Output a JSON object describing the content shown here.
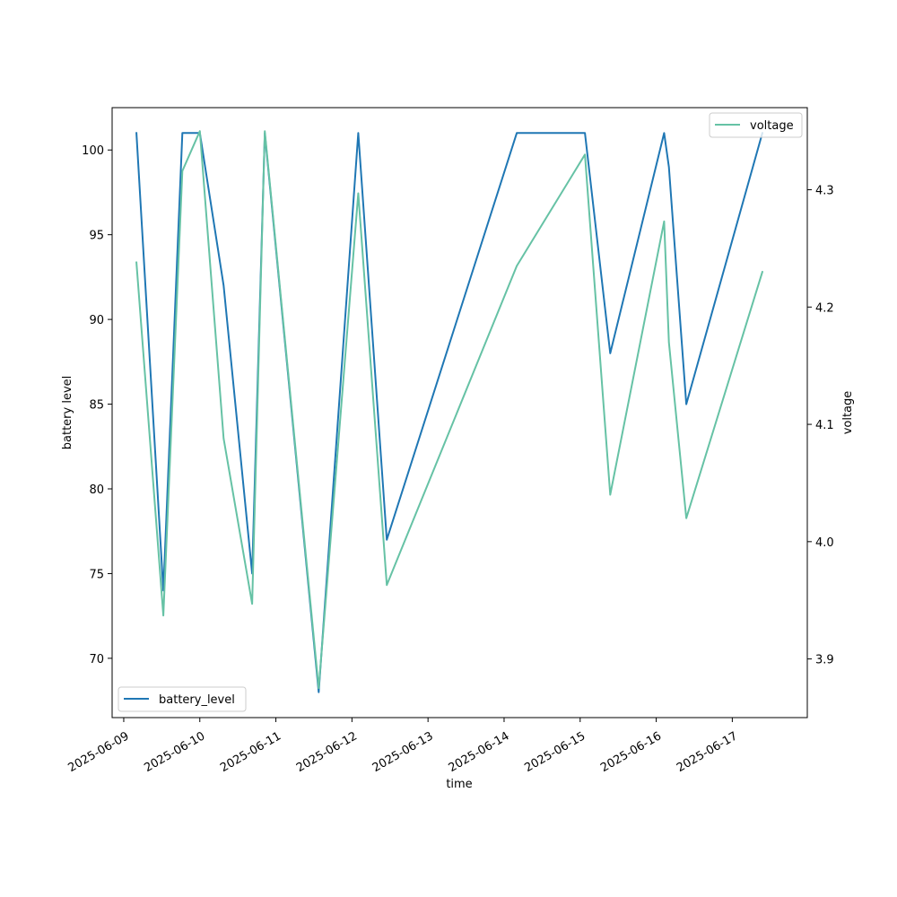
{
  "chart_data": {
    "type": "line",
    "xlabel": "time",
    "ylabel_left": "battery level",
    "ylabel_right": "voltage",
    "x_ticks": [
      "2025-06-09",
      "2025-06-10",
      "2025-06-11",
      "2025-06-12",
      "2025-06-13",
      "2025-06-14",
      "2025-06-15",
      "2025-06-16",
      "2025-06-17"
    ],
    "xlim": [
      "2025-06-08T20:20",
      "2025-06-17T23:40"
    ],
    "y_left_ticks": [
      70,
      75,
      80,
      85,
      90,
      95,
      100
    ],
    "y_left_lim": [
      66.5,
      102.5
    ],
    "y_right_ticks": [
      3.9,
      4.0,
      4.1,
      4.2,
      4.3
    ],
    "y_right_lim": [
      3.85,
      4.37
    ],
    "grid": false,
    "series": [
      {
        "name": "battery_level",
        "axis": "left",
        "color": "#1f77b4",
        "legend_position": "lower-left",
        "points": [
          [
            "2025-06-09T04:00",
            101
          ],
          [
            "2025-06-09T12:30",
            74
          ],
          [
            "2025-06-09T18:30",
            101
          ],
          [
            "2025-06-10T00:00",
            101
          ],
          [
            "2025-06-10T07:30",
            92
          ],
          [
            "2025-06-10T16:30",
            75
          ],
          [
            "2025-06-10T20:30",
            101
          ],
          [
            "2025-06-11T13:30",
            68
          ],
          [
            "2025-06-12T02:00",
            101
          ],
          [
            "2025-06-12T11:00",
            77
          ],
          [
            "2025-06-14T04:00",
            101
          ],
          [
            "2025-06-15T01:30",
            101
          ],
          [
            "2025-06-15T09:30",
            88
          ],
          [
            "2025-06-16T02:30",
            101
          ],
          [
            "2025-06-16T04:00",
            99
          ],
          [
            "2025-06-16T09:30",
            85
          ],
          [
            "2025-06-17T09:30",
            101
          ]
        ]
      },
      {
        "name": "voltage",
        "axis": "right",
        "color": "#66c2a5",
        "legend_position": "upper-right",
        "points": [
          [
            "2025-06-09T04:00",
            4.238
          ],
          [
            "2025-06-09T12:30",
            3.937
          ],
          [
            "2025-06-09T18:30",
            4.316
          ],
          [
            "2025-06-10T00:00",
            4.35
          ],
          [
            "2025-06-10T07:30",
            4.088
          ],
          [
            "2025-06-10T16:30",
            3.947
          ],
          [
            "2025-06-10T20:30",
            4.35
          ],
          [
            "2025-06-11T13:30",
            3.875
          ],
          [
            "2025-06-12T02:00",
            4.297
          ],
          [
            "2025-06-12T11:00",
            3.963
          ],
          [
            "2025-06-14T04:00",
            4.235
          ],
          [
            "2025-06-15T01:30",
            4.33
          ],
          [
            "2025-06-15T09:30",
            4.04
          ],
          [
            "2025-06-16T02:30",
            4.273
          ],
          [
            "2025-06-16T04:00",
            4.17
          ],
          [
            "2025-06-16T09:30",
            4.02
          ],
          [
            "2025-06-17T09:30",
            4.23
          ]
        ]
      }
    ]
  }
}
